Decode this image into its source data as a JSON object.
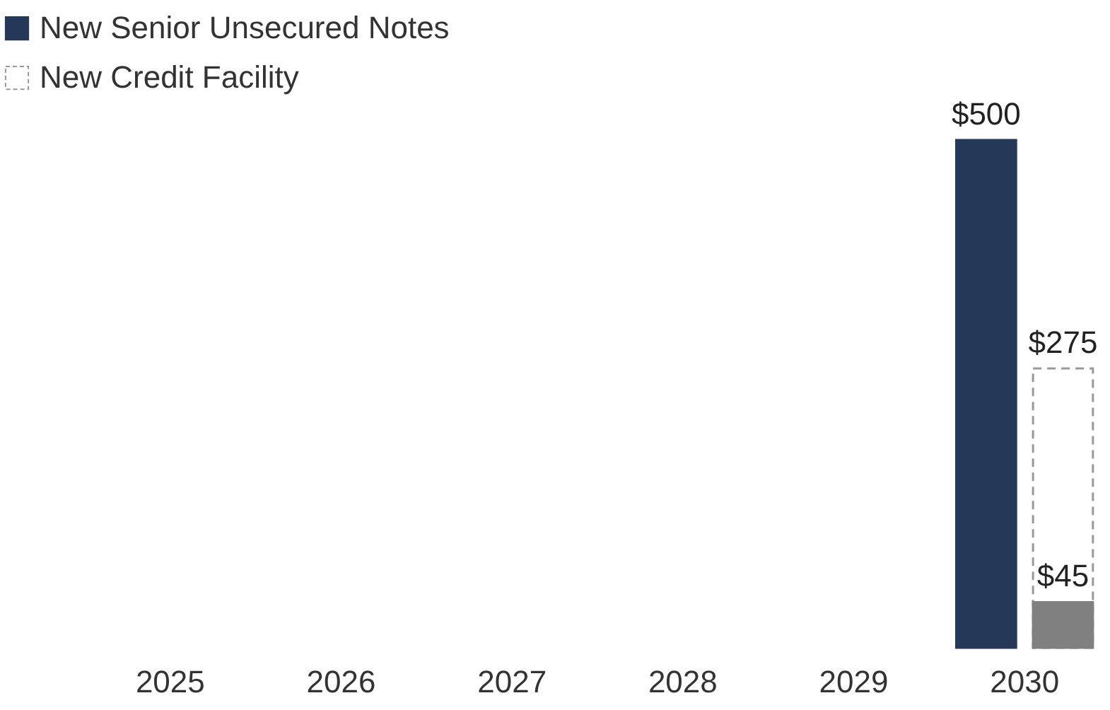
{
  "chart_data": {
    "type": "bar",
    "categories": [
      "2025",
      "2026",
      "2027",
      "2028",
      "2029",
      "2030"
    ],
    "series": [
      {
        "name": "New Senior Unsecured Notes",
        "color": "#253858",
        "values": [
          null,
          null,
          null,
          null,
          null,
          500
        ],
        "value_labels": [
          null,
          null,
          null,
          null,
          null,
          "$500"
        ]
      },
      {
        "name": "New Credit Facility",
        "color": "#ffffff",
        "line_style": "dashed",
        "values": [
          null,
          null,
          null,
          null,
          null,
          275
        ],
        "value_labels": [
          null,
          null,
          null,
          null,
          null,
          "$275"
        ]
      },
      {
        "color": "#808080",
        "values": [
          null,
          null,
          null,
          null,
          null,
          45
        ],
        "value_labels": [
          null,
          null,
          null,
          null,
          null,
          "$45"
        ]
      }
    ],
    "tick_labels": "x",
    "grid": false,
    "legend": "top left"
  }
}
